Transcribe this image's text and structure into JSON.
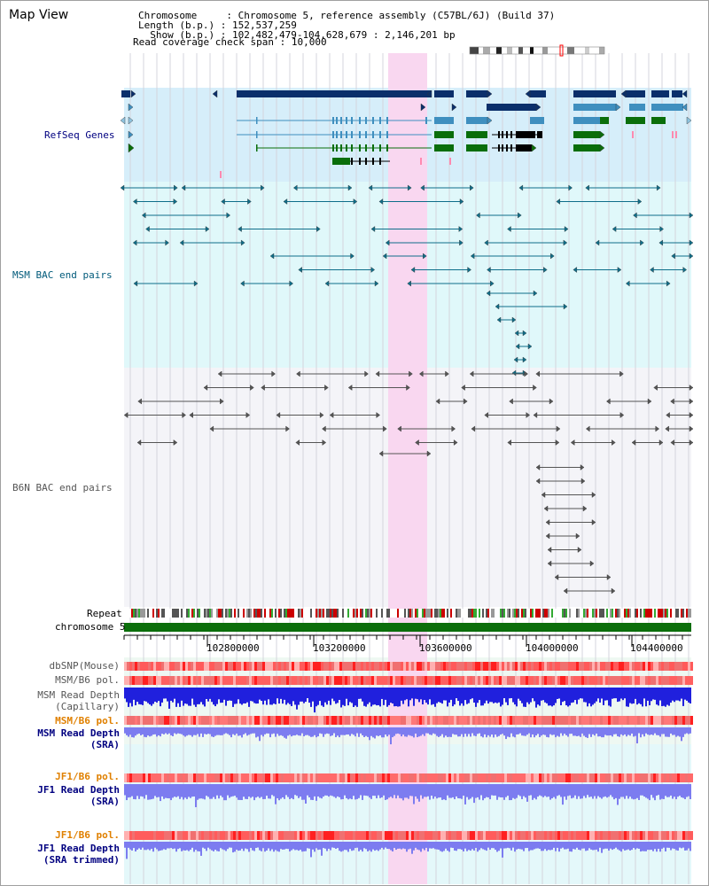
{
  "window": {
    "title": "Map View"
  },
  "header": {
    "chromosome_key": "Chromosome    ",
    "chromosome_value": "Chromosome 5, reference assembly (C57BL/6J) (Build 37)",
    "length_key": "Length (b.p.)",
    "length_value": "152,537,259",
    "show_key": "  Show (b.p.)",
    "show_value": "102,482,479-104,628,679 : 2,146,201 bp",
    "span_key": "Read coverage check span",
    "span_value": "10,000"
  },
  "tracks": {
    "refseq": "RefSeq Genes",
    "msm_bac": "MSM BAC end pairs",
    "b6n_bac": "B6N BAC end pairs",
    "repeat": "Repeat",
    "chromosome": "chromosome 5"
  },
  "axis": {
    "ticks": [
      "102800000",
      "103200000",
      "103600000",
      "104000000",
      "104400000"
    ]
  },
  "lower_tracks": {
    "dbsnp": "dbSNP(Mouse)",
    "msm_b6_pol_1": "MSM/B6 pol.",
    "msm_depth_cap_1": "MSM Read Depth",
    "msm_depth_cap_2": "(Capillary)",
    "msm_b6_pol_2": "MSM/B6 pol.",
    "msm_depth_sra_1": "MSM Read Depth",
    "msm_depth_sra_2": "(SRA)",
    "jf1_b6_pol_1": "JF1/B6 pol.",
    "jf1_depth_1": "JF1 Read Depth",
    "jf1_depth_2": "(SRA)",
    "jf1_b6_pol_2": "JF1/B6 pol.",
    "jf1_depth_trim_1": "JF1 Read Depth",
    "jf1_depth_trim_2": "(SRA trimmed)"
  },
  "colors": {
    "highlight": "#f9d7f0",
    "refseq_bg": "#d6eefa",
    "msm_bg": "#e0f8fa",
    "b6n_bg": "#f4f4f8",
    "gene_dark": "#0b2f6b",
    "gene_mid": "#3f8fbf",
    "gene_light": "#8ec3df",
    "gene_green": "#0a6e0a",
    "msm_line": "#0e6e8a",
    "b6n_line": "#555555",
    "chrom": "#0b6e0b",
    "snp": "#ff5a5a",
    "depth_dark": "#2020dd",
    "depth_light": "#7c7cf0",
    "label_dark_blue": "#000080",
    "label_teal": "#005a7a",
    "label_orange": "#e08000",
    "label_gray": "#555555"
  }
}
